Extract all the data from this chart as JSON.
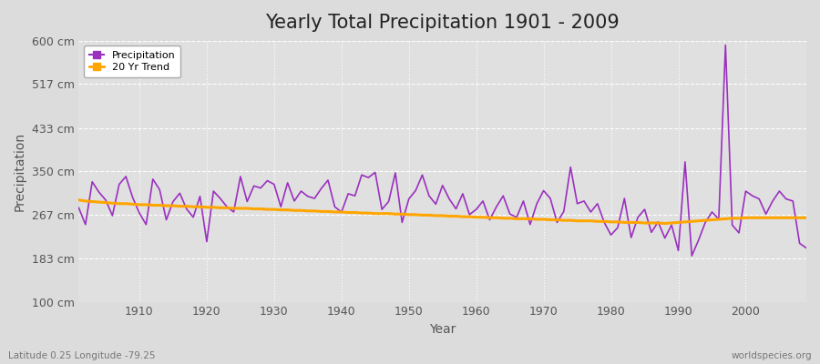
{
  "title": "Yearly Total Precipitation 1901 - 2009",
  "xlabel": "Year",
  "ylabel": "Precipitation",
  "subtitle_left": "Latitude 0.25 Longitude -79.25",
  "subtitle_right": "worldspecies.org",
  "ylim": [
    100,
    600
  ],
  "yticks": [
    100,
    183,
    267,
    350,
    433,
    517,
    600
  ],
  "ytick_labels": [
    "100 cm",
    "183 cm",
    "267 cm",
    "350 cm",
    "433 cm",
    "517 cm",
    "600 cm"
  ],
  "xlim": [
    1901,
    2009
  ],
  "years": [
    1901,
    1902,
    1903,
    1904,
    1905,
    1906,
    1907,
    1908,
    1909,
    1910,
    1911,
    1912,
    1913,
    1914,
    1915,
    1916,
    1917,
    1918,
    1919,
    1920,
    1921,
    1922,
    1923,
    1924,
    1925,
    1926,
    1927,
    1928,
    1929,
    1930,
    1931,
    1932,
    1933,
    1934,
    1935,
    1936,
    1937,
    1938,
    1939,
    1940,
    1941,
    1942,
    1943,
    1944,
    1945,
    1946,
    1947,
    1948,
    1949,
    1950,
    1951,
    1952,
    1953,
    1954,
    1955,
    1956,
    1957,
    1958,
    1959,
    1960,
    1961,
    1962,
    1963,
    1964,
    1965,
    1966,
    1967,
    1968,
    1969,
    1970,
    1971,
    1972,
    1973,
    1974,
    1975,
    1976,
    1977,
    1978,
    1979,
    1980,
    1981,
    1982,
    1983,
    1984,
    1985,
    1986,
    1987,
    1988,
    1989,
    1990,
    1991,
    1992,
    1993,
    1994,
    1995,
    1996,
    1997,
    1998,
    1999,
    2000,
    2001,
    2002,
    2003,
    2004,
    2005,
    2006,
    2007,
    2008,
    2009
  ],
  "precipitation": [
    280,
    248,
    330,
    310,
    295,
    265,
    325,
    340,
    300,
    270,
    248,
    335,
    315,
    257,
    292,
    308,
    278,
    262,
    302,
    215,
    312,
    298,
    282,
    272,
    340,
    292,
    322,
    318,
    332,
    325,
    282,
    328,
    293,
    312,
    302,
    298,
    317,
    333,
    282,
    272,
    307,
    303,
    343,
    338,
    348,
    277,
    292,
    347,
    252,
    297,
    313,
    343,
    303,
    287,
    323,
    297,
    278,
    307,
    267,
    277,
    293,
    257,
    282,
    303,
    268,
    262,
    293,
    248,
    288,
    313,
    298,
    252,
    273,
    358,
    288,
    293,
    272,
    288,
    252,
    228,
    242,
    298,
    223,
    262,
    277,
    233,
    253,
    222,
    247,
    198,
    368,
    188,
    218,
    252,
    272,
    258,
    592,
    247,
    232,
    312,
    303,
    297,
    268,
    293,
    312,
    297,
    293,
    212,
    203
  ],
  "trend": [
    295,
    293,
    292,
    291,
    290,
    289,
    288,
    288,
    287,
    286,
    286,
    285,
    285,
    284,
    284,
    283,
    283,
    282,
    282,
    281,
    281,
    280,
    280,
    279,
    279,
    279,
    278,
    278,
    277,
    277,
    276,
    276,
    275,
    275,
    274,
    274,
    273,
    273,
    272,
    272,
    271,
    271,
    270,
    270,
    269,
    269,
    269,
    268,
    268,
    267,
    267,
    266,
    266,
    265,
    265,
    264,
    264,
    263,
    263,
    262,
    262,
    261,
    261,
    260,
    260,
    259,
    259,
    259,
    258,
    258,
    257,
    257,
    256,
    256,
    255,
    255,
    255,
    254,
    254,
    253,
    253,
    252,
    252,
    252,
    251,
    251,
    251,
    250,
    251,
    252,
    253,
    254,
    255,
    256,
    257,
    258,
    259,
    260,
    260,
    261,
    261,
    261,
    261,
    261,
    261,
    261,
    261,
    261,
    261
  ],
  "precip_color": "#9b30bf",
  "trend_color": "#FFA500",
  "fig_bg_color": "#dcdcdc",
  "plot_bg_color": "#e0e0e0",
  "grid_color": "#ffffff",
  "title_fontsize": 15,
  "label_fontsize": 10,
  "tick_fontsize": 9
}
